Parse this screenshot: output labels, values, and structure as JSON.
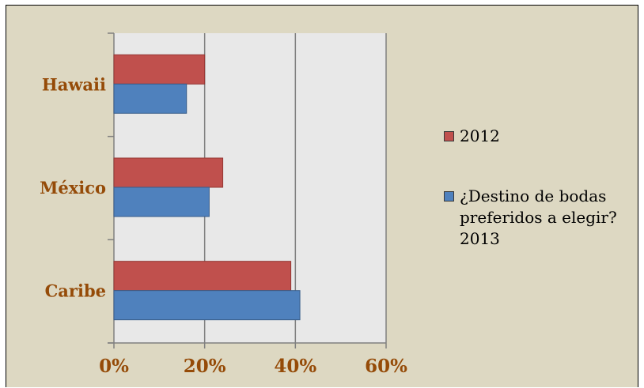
{
  "chart_data": {
    "type": "bar",
    "orientation": "horizontal",
    "title": "",
    "xlabel": "",
    "ylabel": "",
    "categories": [
      "Hawaii",
      "México",
      "Caribe"
    ],
    "series": [
      {
        "name": "2012",
        "values": [
          0.2,
          0.24,
          0.39
        ],
        "color": "#c0504d"
      },
      {
        "name": "¿Destino de bodas preferidos a elegir? 2013",
        "values": [
          0.16,
          0.21,
          0.41
        ],
        "color": "#4f81bd"
      }
    ],
    "xlim": [
      0,
      0.6
    ],
    "x_ticks": [
      0,
      0.2,
      0.4,
      0.6
    ],
    "x_tick_labels": [
      "0%",
      "20%",
      "40%",
      "60%"
    ],
    "grid": "vertical major lines",
    "legend_position": "right",
    "colors": {
      "background": "#ddd8c2",
      "plot_area": "#e8e8e8",
      "label_text": "#954b08",
      "gridline": "#808080"
    }
  }
}
